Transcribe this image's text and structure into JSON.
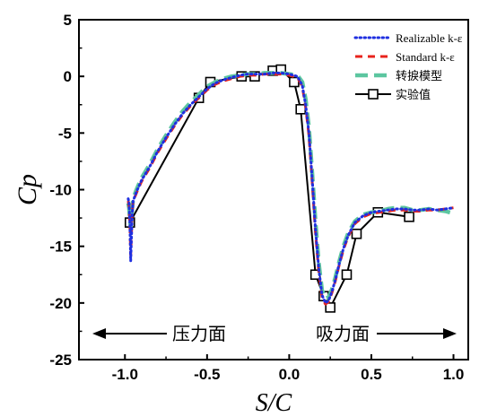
{
  "chart_data": {
    "type": "line",
    "xlabel": "S/C",
    "ylabel": "Cp",
    "xlim": [
      -1.28,
      1.09
    ],
    "ylim": [
      -25,
      5
    ],
    "x_ticks": [
      -1.0,
      -0.5,
      0.0,
      0.5,
      1.0
    ],
    "x_tick_labels": [
      "-1.0",
      "-0.5",
      "0.0",
      "0.5",
      "1.0"
    ],
    "y_ticks": [
      -25,
      -20,
      -15,
      -10,
      -5,
      0,
      5
    ],
    "y_tick_labels": [
      "-25",
      "-20",
      "-15",
      "-10",
      "-5",
      "0",
      "5"
    ],
    "grid": false,
    "legend_position": "top-right",
    "series": [
      {
        "name": "Realizable k-ε",
        "color": "#1f2fe0",
        "style": "dotted",
        "x": [
          -0.98,
          -0.975,
          -0.97,
          -0.965,
          -0.96,
          -0.955,
          -0.95,
          -0.93,
          -0.9,
          -0.85,
          -0.8,
          -0.75,
          -0.7,
          -0.65,
          -0.6,
          -0.55,
          -0.5,
          -0.45,
          -0.4,
          -0.35,
          -0.3,
          -0.25,
          -0.2,
          -0.15,
          -0.1,
          -0.05,
          0.0,
          0.05,
          0.08,
          0.1,
          0.12,
          0.14,
          0.16,
          0.18,
          0.2,
          0.22,
          0.24,
          0.26,
          0.28,
          0.3,
          0.33,
          0.36,
          0.4,
          0.45,
          0.5,
          0.55,
          0.6,
          0.65,
          0.7,
          0.75,
          0.8,
          0.85,
          0.9,
          0.95,
          1.0
        ],
        "y": [
          -10.8,
          -11.2,
          -13.0,
          -16.3,
          -14.0,
          -12.0,
          -11.0,
          -10.2,
          -9.2,
          -8.0,
          -6.6,
          -5.4,
          -4.3,
          -3.3,
          -2.5,
          -1.8,
          -1.1,
          -0.6,
          -0.3,
          -0.1,
          0.1,
          0.2,
          0.2,
          0.2,
          0.3,
          0.3,
          0.2,
          0.0,
          -0.8,
          -2.5,
          -5.0,
          -9.0,
          -13.5,
          -17.0,
          -19.3,
          -20.0,
          -19.8,
          -19.0,
          -18.0,
          -16.8,
          -15.2,
          -14.0,
          -12.9,
          -12.3,
          -12.0,
          -11.9,
          -11.8,
          -11.7,
          -11.7,
          -11.8,
          -11.8,
          -11.7,
          -11.8,
          -11.7,
          -11.6
        ]
      },
      {
        "name": "Standard k-ε",
        "color": "#e8231c",
        "style": "dashed",
        "x": [
          -0.98,
          -0.975,
          -0.97,
          -0.965,
          -0.96,
          -0.955,
          -0.95,
          -0.93,
          -0.9,
          -0.85,
          -0.8,
          -0.75,
          -0.7,
          -0.65,
          -0.6,
          -0.55,
          -0.5,
          -0.45,
          -0.4,
          -0.35,
          -0.3,
          -0.25,
          -0.2,
          -0.15,
          -0.1,
          -0.05,
          0.0,
          0.05,
          0.08,
          0.1,
          0.12,
          0.14,
          0.16,
          0.18,
          0.2,
          0.22,
          0.24,
          0.26,
          0.28,
          0.3,
          0.33,
          0.36,
          0.4,
          0.45,
          0.5,
          0.55,
          0.6,
          0.65,
          0.7,
          0.75,
          0.8,
          0.85,
          0.9,
          0.95,
          1.0
        ],
        "y": [
          -11.0,
          -11.5,
          -13.2,
          -15.8,
          -13.8,
          -11.9,
          -11.0,
          -10.3,
          -9.3,
          -8.1,
          -6.7,
          -5.5,
          -4.4,
          -3.4,
          -2.6,
          -1.9,
          -1.2,
          -0.7,
          -0.4,
          -0.2,
          0.0,
          0.1,
          0.1,
          0.2,
          0.2,
          0.2,
          0.1,
          -0.1,
          -0.9,
          -2.7,
          -5.2,
          -9.3,
          -13.8,
          -17.3,
          -19.5,
          -20.1,
          -19.9,
          -19.1,
          -18.1,
          -16.9,
          -15.3,
          -14.1,
          -13.0,
          -12.4,
          -12.1,
          -12.0,
          -11.9,
          -11.8,
          -11.8,
          -11.9,
          -11.9,
          -11.8,
          -11.8,
          -11.7,
          -11.6
        ]
      },
      {
        "name": "转捩模型",
        "color": "#5cc6a0",
        "style": "dashed-thick",
        "x": [
          -0.98,
          -0.975,
          -0.97,
          -0.965,
          -0.96,
          -0.955,
          -0.95,
          -0.93,
          -0.9,
          -0.85,
          -0.8,
          -0.75,
          -0.7,
          -0.65,
          -0.6,
          -0.55,
          -0.5,
          -0.45,
          -0.4,
          -0.35,
          -0.3,
          -0.25,
          -0.2,
          -0.15,
          -0.1,
          -0.05,
          0.0,
          0.05,
          0.08,
          0.1,
          0.12,
          0.14,
          0.16,
          0.18,
          0.2,
          0.22,
          0.24,
          0.26,
          0.28,
          0.3,
          0.33,
          0.36,
          0.4,
          0.45,
          0.5,
          0.55,
          0.6,
          0.65,
          0.7,
          0.75,
          0.8,
          0.85,
          0.9,
          0.95,
          1.0
        ],
        "y": [
          -11.2,
          -11.6,
          -12.6,
          -13.3,
          -12.4,
          -11.5,
          -10.8,
          -10.0,
          -9.0,
          -7.8,
          -6.4,
          -5.2,
          -4.1,
          -3.1,
          -2.3,
          -1.6,
          -0.9,
          -0.5,
          -0.2,
          0.0,
          0.1,
          0.2,
          0.2,
          0.3,
          0.3,
          0.3,
          0.2,
          0.1,
          -0.5,
          -2.0,
          -4.5,
          -8.5,
          -12.8,
          -16.5,
          -18.9,
          -19.6,
          -19.5,
          -18.8,
          -17.8,
          -16.6,
          -15.0,
          -13.8,
          -12.8,
          -12.2,
          -12.0,
          -11.9,
          -11.7,
          -11.6,
          -11.6,
          -11.8,
          -11.8,
          -11.7,
          -11.8,
          -11.9,
          -12.1
        ]
      },
      {
        "name": "实验值",
        "color": "#000000",
        "style": "solid-square-markers",
        "x": [
          -0.97,
          -0.55,
          -0.48,
          -0.29,
          -0.21,
          -0.1,
          -0.05,
          0.03,
          0.07,
          0.16,
          0.21,
          0.25,
          0.35,
          0.41,
          0.54,
          0.73
        ],
        "y": [
          -12.9,
          -1.9,
          -0.5,
          0.0,
          0.0,
          0.5,
          0.6,
          -0.5,
          -2.9,
          -17.5,
          -19.4,
          -20.4,
          -17.5,
          -13.9,
          -12.0,
          -12.4
        ]
      }
    ],
    "annotations": [
      {
        "text": "压力面",
        "direction": "left"
      },
      {
        "text": "吸力面",
        "direction": "right"
      }
    ]
  }
}
